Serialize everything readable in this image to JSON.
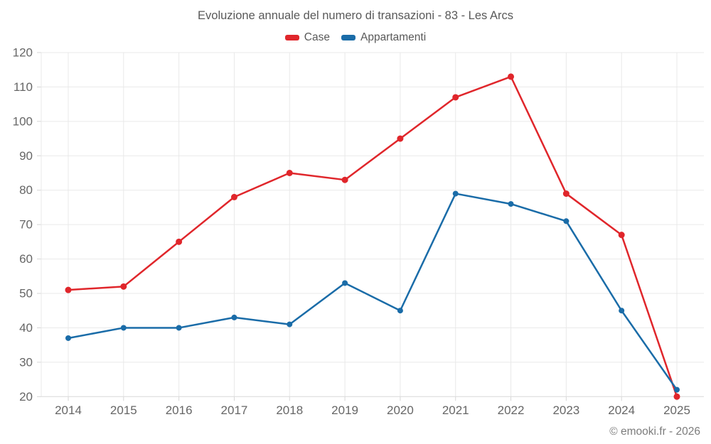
{
  "title": "Evoluzione annuale del numero di transazioni - 83 - Les Arcs",
  "legend": {
    "items": [
      {
        "label": "Case",
        "color": "#e0262b"
      },
      {
        "label": "Appartamenti",
        "color": "#1a6ca8"
      }
    ]
  },
  "footer": {
    "copyright": "© emooki.fr - 2026"
  },
  "colors": {
    "grid": "#e9e9e9",
    "axis": "#dcdcdc",
    "tick": "#d6d6d6",
    "tick_label": "#666666",
    "title_text": "#595959",
    "footer_text": "#7c7c7c"
  },
  "chart_data": {
    "type": "line",
    "title": "Evoluzione annuale del numero di transazioni - 83 - Les Arcs",
    "categories": [
      "2014",
      "2015",
      "2016",
      "2017",
      "2018",
      "2019",
      "2020",
      "2021",
      "2022",
      "2023",
      "2024",
      "2025"
    ],
    "series": [
      {
        "name": "Case",
        "color": "#e0262b",
        "marker_radius": 4.5,
        "values": [
          51,
          52,
          65,
          78,
          85,
          83,
          95,
          107,
          113,
          79,
          67,
          20
        ]
      },
      {
        "name": "Appartamenti",
        "color": "#1a6ca8",
        "marker_radius": 4,
        "values": [
          37,
          40,
          40,
          43,
          41,
          53,
          45,
          79,
          76,
          71,
          45,
          22
        ]
      }
    ],
    "xlabel": "",
    "ylabel": "",
    "ylim": [
      20,
      120
    ],
    "ytick_step": 10,
    "grid": true,
    "legend_position": "top"
  }
}
